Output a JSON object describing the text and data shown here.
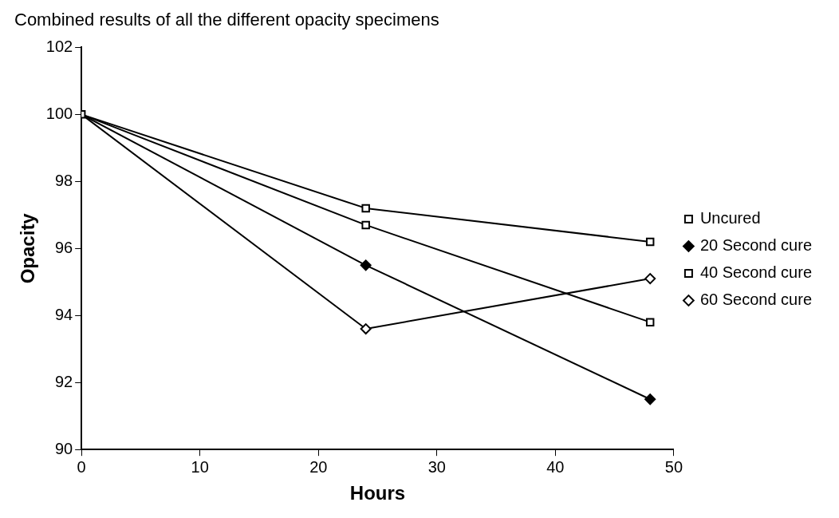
{
  "chart_data": {
    "type": "line",
    "title": "Combined results of all the different opacity specimens",
    "xlabel": "Hours",
    "ylabel": "Opacity",
    "x": [
      0,
      24,
      48
    ],
    "series": [
      {
        "name": "Uncured",
        "color": "#000000",
        "marker": "square",
        "values": [
          100,
          97.2,
          96.2
        ]
      },
      {
        "name": "20 Second cure",
        "color": "#000000",
        "marker": "diamond",
        "values": [
          100,
          95.5,
          91.5
        ]
      },
      {
        "name": "40 Second cure",
        "color": "#000000",
        "marker": "square",
        "values": [
          100,
          96.7,
          93.8
        ]
      },
      {
        "name": "60 Second cure",
        "color": "#000000",
        "marker": "diamond",
        "values": [
          100,
          93.6,
          95.1
        ]
      }
    ],
    "xlim": [
      0,
      50
    ],
    "xticks": [
      0,
      10,
      20,
      30,
      40,
      50
    ],
    "ylim": [
      90,
      102
    ],
    "yticks": [
      90,
      92,
      94,
      96,
      98,
      100,
      102
    ],
    "grid": false,
    "legend": "right",
    "line_style": "solid"
  }
}
